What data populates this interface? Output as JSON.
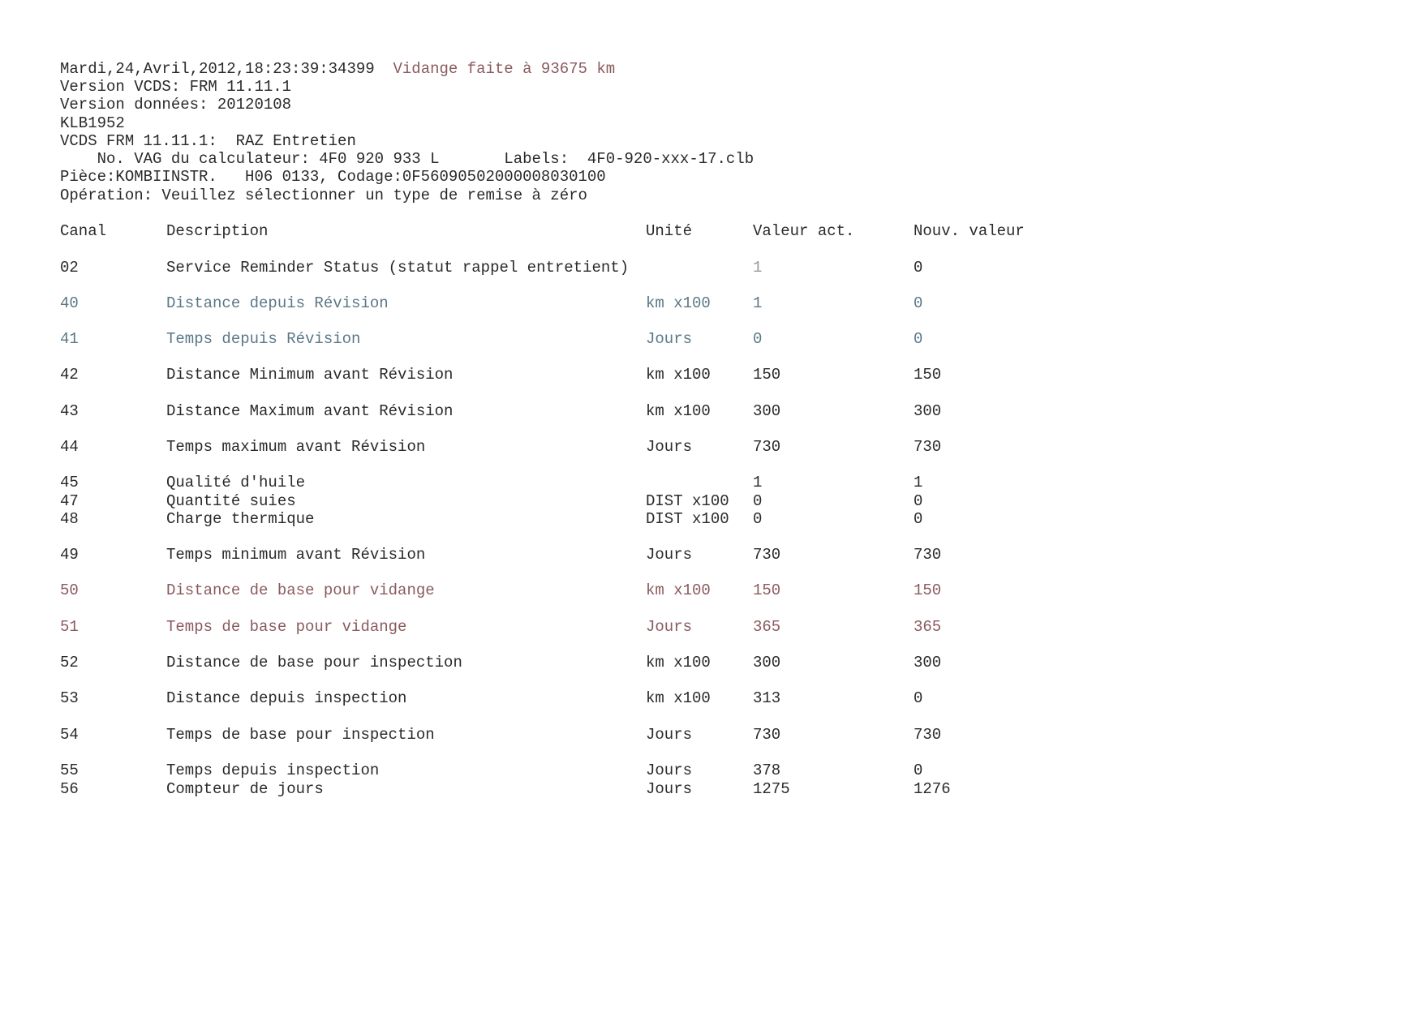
{
  "header": {
    "timestamp": "Mardi,24,Avril,2012,18:23:39:34399",
    "note": "Vidange faite à 93675 km",
    "lines": [
      "Version VCDS: FRM 11.11.1",
      "Version données: 20120108",
      "KLB1952",
      "VCDS FRM 11.11.1:  RAZ Entretien",
      "    No. VAG du calculateur: 4F0 920 933 L       Labels:  4F0-920-xxx-17.clb",
      "Pièce:KOMBIINSTR.   H06 0133, Codage:0F5609050200000803010​0",
      "Opération: Veuillez sélectionner un type de remise à zéro"
    ]
  },
  "colors": {
    "note": "#8b5a5e",
    "blue": "#5b7888",
    "red": "#8b5a5e",
    "text": "#2a2a2a"
  },
  "table": {
    "columns": [
      "Canal",
      "Description",
      "Unité",
      "Valeur act.",
      "Nouv. valeur"
    ],
    "rows": [
      {
        "canal": "02",
        "description": "Service Reminder Status (statut rappel entretient)",
        "unit": "",
        "value": "1",
        "new": "0",
        "tone": "default"
      },
      {
        "canal": "40",
        "description": "Distance depuis Révision",
        "unit": "km x100",
        "value": "1",
        "new": "0",
        "tone": "blue"
      },
      {
        "canal": "41",
        "description": "Temps depuis Révision",
        "unit": "Jours",
        "value": "0",
        "new": "0",
        "tone": "blue"
      },
      {
        "canal": "42",
        "description": "Distance Minimum avant Révision",
        "unit": "km x100",
        "value": "150",
        "new": "150",
        "tone": "default"
      },
      {
        "canal": "43",
        "description": "Distance Maximum avant Révision",
        "unit": "km x100",
        "value": "300",
        "new": "300",
        "tone": "default"
      },
      {
        "canal": "44",
        "description": "Temps maximum avant Révision",
        "unit": "Jours",
        "value": "730",
        "new": "730",
        "tone": "default"
      },
      {
        "canal": "45",
        "description": "Qualité d'huile",
        "unit": "",
        "value": "1",
        "new": "1",
        "tone": "default"
      },
      {
        "canal": "47",
        "description": "Quantité suies",
        "unit": "DIST x100",
        "value": "0",
        "new": "0",
        "tone": "default"
      },
      {
        "canal": "48",
        "description": "Charge thermique",
        "unit": "DIST x100",
        "value": "0",
        "new": "0",
        "tone": "default"
      },
      {
        "canal": "49",
        "description": "Temps minimum avant Révision",
        "unit": "Jours",
        "value": "730",
        "new": "730",
        "tone": "default"
      },
      {
        "canal": "50",
        "description": "Distance de base pour vidange",
        "unit": "km x100",
        "value": "150",
        "new": "150",
        "tone": "red"
      },
      {
        "canal": "51",
        "description": "Temps de base pour vidange",
        "unit": "Jours",
        "value": "365",
        "new": "365",
        "tone": "red"
      },
      {
        "canal": "52",
        "description": "Distance de base pour inspection",
        "unit": "km x100",
        "value": "300",
        "new": "300",
        "tone": "default"
      },
      {
        "canal": "53",
        "description": "Distance depuis inspection",
        "unit": "km x100",
        "value": "313",
        "new": "0",
        "tone": "default"
      },
      {
        "canal": "54",
        "description": "Temps de base pour inspection",
        "unit": "Jours",
        "value": "730",
        "new": "730",
        "tone": "default"
      },
      {
        "canal": "55",
        "description": "Temps depuis inspection",
        "unit": "Jours",
        "value": "378",
        "new": "0",
        "tone": "default"
      },
      {
        "canal": "56",
        "description": "Compteur de jours",
        "unit": "Jours",
        "value": "1275",
        "new": "1276",
        "tone": "default"
      }
    ]
  }
}
